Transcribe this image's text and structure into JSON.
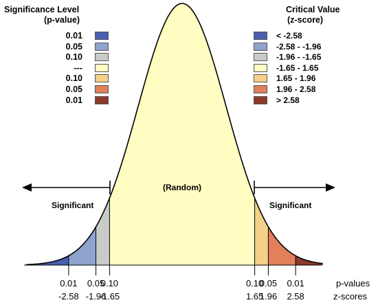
{
  "legend_left": {
    "title_line1": "Significance Level",
    "title_line2": "(p-value)",
    "items": [
      {
        "label": "0.01",
        "color": "#4a5fb0"
      },
      {
        "label": "0.05",
        "color": "#8fa3cf"
      },
      {
        "label": "0.10",
        "color": "#c8ccc8"
      },
      {
        "label": "---",
        "color": "#fffdc2"
      },
      {
        "label": "0.10",
        "color": "#f5d08a"
      },
      {
        "label": "0.05",
        "color": "#e3805c"
      },
      {
        "label": "0.01",
        "color": "#8c3a2a"
      }
    ]
  },
  "legend_right": {
    "title_line1": "Critical Value",
    "title_line2": "(z-score)",
    "items": [
      {
        "label": "< -2.58",
        "color": "#4a5fb0"
      },
      {
        "label": "-2.58 - -1.96",
        "color": "#8fa3cf"
      },
      {
        "label": "-1.96 - -1.65",
        "color": "#c8ccc8"
      },
      {
        "label": "-1.65 - 1.65",
        "color": "#fffdc2"
      },
      {
        "label": "1.65 - 1.96",
        "color": "#f5d08a"
      },
      {
        "label": "1.96 - 2.58",
        "color": "#e3805c"
      },
      {
        "label": "> 2.58",
        "color": "#8c3a2a"
      }
    ]
  },
  "regions": {
    "center_label": "(Random)",
    "left_label": "Significant",
    "right_label": "Significant"
  },
  "axis": {
    "p_values_title": "p-values",
    "z_scores_title": "z-scores",
    "ticks": [
      {
        "z": -2.58,
        "p": "0.01",
        "z_label": "-2.58"
      },
      {
        "z": -1.96,
        "p": "0.05",
        "z_label": "-1.96"
      },
      {
        "z": -1.65,
        "p": "0.10",
        "z_label": "-1.65"
      },
      {
        "z": 1.65,
        "p": "0.10",
        "z_label": "1.65"
      },
      {
        "z": 1.96,
        "p": "0.05",
        "z_label": "1.96"
      },
      {
        "z": 2.58,
        "p": "0.01",
        "z_label": "2.58"
      }
    ]
  },
  "curve_colors": {
    "outline": "#000000",
    "tail_far_left": "#4a5fb0",
    "tail_mid_left": "#8fa3cf",
    "tail_near_left": "#c8ccc8",
    "center": "#fffdc2",
    "tail_near_right": "#f5d08a",
    "tail_mid_right": "#e3805c",
    "tail_far_right": "#8c3a2a"
  }
}
